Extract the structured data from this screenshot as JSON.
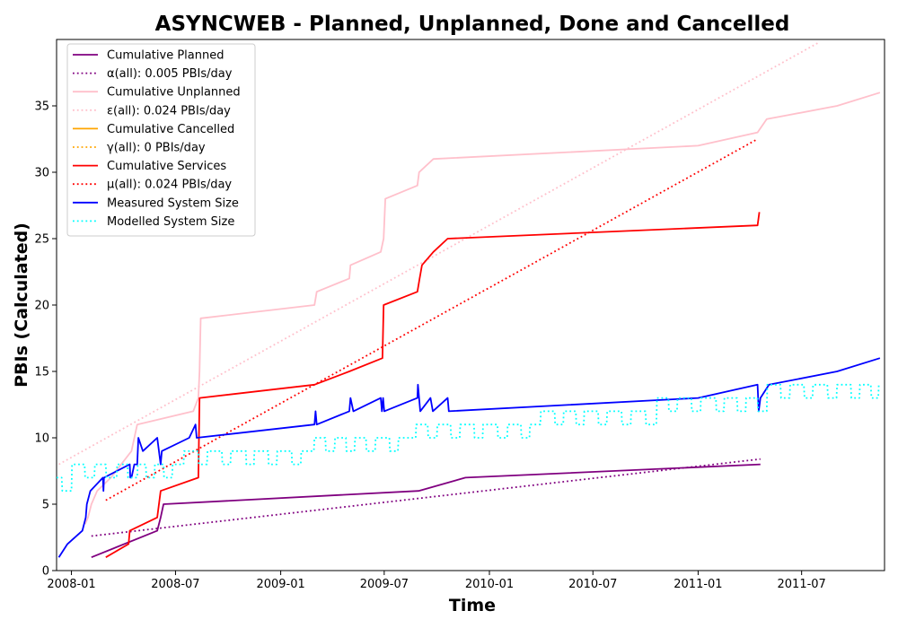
{
  "chart_data": {
    "type": "line",
    "title": "ASYNCWEB - Planned, Unplanned, Done  and Cancelled",
    "xlabel": "Time",
    "ylabel": "PBIs (Calculated)",
    "x_axis_type": "date",
    "xlim": [
      "2007-12-06",
      "2011-11-23"
    ],
    "ylim": [
      0,
      40
    ],
    "x_ticks": [
      "2008-01",
      "2008-07",
      "2009-01",
      "2009-07",
      "2010-01",
      "2010-07",
      "2011-01",
      "2011-07"
    ],
    "y_ticks": [
      0,
      5,
      10,
      15,
      20,
      25,
      30,
      35
    ],
    "grid": false,
    "legend_position": "top-left",
    "series": [
      {
        "name": "Cumulative Planned",
        "color": "#800080",
        "style": "solid",
        "points": [
          [
            "2008-02-05",
            1
          ],
          [
            "2008-05-30",
            3
          ],
          [
            "2008-06-05",
            4
          ],
          [
            "2008-06-10",
            5
          ],
          [
            "2009-08-30",
            6
          ],
          [
            "2009-11-20",
            7
          ],
          [
            "2011-04-20",
            8
          ]
        ]
      },
      {
        "name": "α(all): 0.005 PBIs/day",
        "color": "#800080",
        "style": "dotted",
        "points": [
          [
            "2008-02-05",
            2.6
          ],
          [
            "2011-04-20",
            8.4
          ]
        ]
      },
      {
        "name": "Cumulative Unplanned",
        "color": "#ffc0cb",
        "style": "solid",
        "points": [
          [
            "2008-01-25",
            3.5
          ],
          [
            "2008-01-30",
            4
          ],
          [
            "2008-02-05",
            5
          ],
          [
            "2008-02-15",
            6
          ],
          [
            "2008-03-10",
            7
          ],
          [
            "2008-04-15",
            9
          ],
          [
            "2008-04-25",
            11
          ],
          [
            "2008-08-01",
            12
          ],
          [
            "2008-08-10",
            13
          ],
          [
            "2008-08-12",
            15
          ],
          [
            "2008-08-14",
            19
          ],
          [
            "2009-03-01",
            20
          ],
          [
            "2009-03-05",
            21
          ],
          [
            "2009-05-01",
            22
          ],
          [
            "2009-05-03",
            23
          ],
          [
            "2009-06-25",
            24
          ],
          [
            "2009-06-30",
            25
          ],
          [
            "2009-07-03",
            28
          ],
          [
            "2009-08-28",
            29
          ],
          [
            "2009-08-31",
            30
          ],
          [
            "2009-09-25",
            31
          ],
          [
            "2011-01-01",
            32
          ],
          [
            "2011-04-15",
            33
          ],
          [
            "2011-05-01",
            34
          ],
          [
            "2011-09-01",
            35
          ],
          [
            "2011-11-15",
            36
          ]
        ]
      },
      {
        "name": "ε(all): 0.024 PBIs/day",
        "color": "#ffc0cb",
        "style": "dotted",
        "points": [
          [
            "2007-12-10",
            8
          ],
          [
            "2011-08-01",
            39.8
          ]
        ]
      },
      {
        "name": "Cumulative Cancelled",
        "color": "#ffa500",
        "style": "solid",
        "points": []
      },
      {
        "name": "γ(all): 0 PBIs/day",
        "color": "#ffa500",
        "style": "dotted",
        "points": []
      },
      {
        "name": "Cumulative Services",
        "color": "#ff0000",
        "style": "solid",
        "points": [
          [
            "2008-03-01",
            1
          ],
          [
            "2008-04-10",
            2
          ],
          [
            "2008-04-12",
            3
          ],
          [
            "2008-05-30",
            4
          ],
          [
            "2008-06-05",
            6
          ],
          [
            "2008-08-10",
            7
          ],
          [
            "2008-08-12",
            13
          ],
          [
            "2009-03-01",
            14
          ],
          [
            "2009-05-01",
            15
          ],
          [
            "2009-06-28",
            16
          ],
          [
            "2009-06-30",
            20
          ],
          [
            "2009-08-28",
            21
          ],
          [
            "2009-09-01",
            22
          ],
          [
            "2009-09-05",
            23
          ],
          [
            "2009-09-25",
            24
          ],
          [
            "2009-10-20",
            25
          ],
          [
            "2011-04-15",
            26
          ],
          [
            "2011-04-18",
            27
          ]
        ]
      },
      {
        "name": "μ(all): 0.024 PBIs/day",
        "color": "#ff0000",
        "style": "dotted",
        "points": [
          [
            "2008-03-01",
            5.3
          ],
          [
            "2011-04-15",
            32.5
          ]
        ]
      },
      {
        "name": "Measured System Size",
        "color": "#0000ff",
        "style": "solid",
        "points": [
          [
            "2007-12-10",
            1
          ],
          [
            "2007-12-25",
            2
          ],
          [
            "2008-01-20",
            3
          ],
          [
            "2008-01-26",
            4
          ],
          [
            "2008-01-28",
            5
          ],
          [
            "2008-02-03",
            6
          ],
          [
            "2008-02-25",
            7
          ],
          [
            "2008-02-26",
            6
          ],
          [
            "2008-02-27",
            7
          ],
          [
            "2008-04-12",
            8
          ],
          [
            "2008-04-13",
            7
          ],
          [
            "2008-04-15",
            7
          ],
          [
            "2008-04-20",
            8
          ],
          [
            "2008-04-25",
            8
          ],
          [
            "2008-04-27",
            10
          ],
          [
            "2008-05-05",
            9
          ],
          [
            "2008-05-30",
            10
          ],
          [
            "2008-06-02",
            9
          ],
          [
            "2008-06-05",
            8
          ],
          [
            "2008-06-07",
            9
          ],
          [
            "2008-07-25",
            10
          ],
          [
            "2008-08-05",
            11
          ],
          [
            "2008-08-07",
            10
          ],
          [
            "2009-03-01",
            11
          ],
          [
            "2009-03-03",
            12
          ],
          [
            "2009-03-05",
            11
          ],
          [
            "2009-05-01",
            12
          ],
          [
            "2009-05-03",
            13
          ],
          [
            "2009-05-08",
            12
          ],
          [
            "2009-06-25",
            13
          ],
          [
            "2009-06-27",
            12
          ],
          [
            "2009-06-29",
            13
          ],
          [
            "2009-07-01",
            12
          ],
          [
            "2009-08-28",
            13
          ],
          [
            "2009-08-29",
            14
          ],
          [
            "2009-09-02",
            12
          ],
          [
            "2009-09-20",
            13
          ],
          [
            "2009-09-24",
            12
          ],
          [
            "2009-10-20",
            13
          ],
          [
            "2009-10-22",
            12
          ],
          [
            "2011-01-01",
            13
          ],
          [
            "2011-04-15",
            14
          ],
          [
            "2011-04-17",
            12
          ],
          [
            "2011-04-20",
            13
          ],
          [
            "2011-05-05",
            14
          ],
          [
            "2011-09-01",
            15
          ],
          [
            "2011-11-15",
            16
          ]
        ]
      },
      {
        "name": "Modelled System Size",
        "color": "#00ffff",
        "style": "dotted",
        "points": [
          [
            "2007-12-06",
            7
          ],
          [
            "2007-12-15",
            7
          ],
          [
            "2007-12-16",
            6
          ],
          [
            "2008-01-01",
            6
          ],
          [
            "2008-01-02",
            8
          ],
          [
            "2008-01-24",
            8
          ],
          [
            "2008-01-25",
            7
          ],
          [
            "2008-02-10",
            7
          ],
          [
            "2008-02-11",
            8
          ],
          [
            "2008-03-01",
            8
          ],
          [
            "2008-03-02",
            7
          ],
          [
            "2008-03-20",
            7
          ],
          [
            "2008-03-21",
            8
          ],
          [
            "2008-04-08",
            8
          ],
          [
            "2008-04-09",
            7
          ],
          [
            "2008-04-25",
            7
          ],
          [
            "2008-04-26",
            8
          ],
          [
            "2008-05-10",
            8
          ],
          [
            "2008-05-11",
            7
          ],
          [
            "2008-05-25",
            7
          ],
          [
            "2008-05-26",
            8
          ],
          [
            "2008-06-10",
            8
          ],
          [
            "2008-06-11",
            7
          ],
          [
            "2008-06-25",
            7
          ],
          [
            "2008-06-26",
            8
          ],
          [
            "2008-07-15",
            8
          ],
          [
            "2008-07-16",
            9
          ],
          [
            "2008-08-10",
            9
          ],
          [
            "2008-08-11",
            8
          ],
          [
            "2008-08-25",
            8
          ],
          [
            "2008-08-26",
            9
          ],
          [
            "2008-09-20",
            9
          ],
          [
            "2008-09-21",
            8
          ],
          [
            "2008-10-05",
            8
          ],
          [
            "2008-10-06",
            9
          ],
          [
            "2008-11-01",
            9
          ],
          [
            "2008-11-02",
            8
          ],
          [
            "2008-11-15",
            8
          ],
          [
            "2008-11-16",
            9
          ],
          [
            "2008-12-10",
            9
          ],
          [
            "2008-12-11",
            8
          ],
          [
            "2008-12-25",
            8
          ],
          [
            "2008-12-26",
            9
          ],
          [
            "2009-01-20",
            9
          ],
          [
            "2009-01-21",
            8
          ],
          [
            "2009-02-05",
            8
          ],
          [
            "2009-02-06",
            9
          ],
          [
            "2009-02-28",
            9
          ],
          [
            "2009-03-01",
            10
          ],
          [
            "2009-03-20",
            10
          ],
          [
            "2009-03-21",
            9
          ],
          [
            "2009-04-05",
            9
          ],
          [
            "2009-04-06",
            10
          ],
          [
            "2009-04-25",
            10
          ],
          [
            "2009-04-26",
            9
          ],
          [
            "2009-05-10",
            9
          ],
          [
            "2009-05-11",
            10
          ],
          [
            "2009-05-30",
            10
          ],
          [
            "2009-05-31",
            9
          ],
          [
            "2009-06-15",
            9
          ],
          [
            "2009-06-16",
            10
          ],
          [
            "2009-07-10",
            10
          ],
          [
            "2009-07-11",
            9
          ],
          [
            "2009-07-25",
            9
          ],
          [
            "2009-07-26",
            10
          ],
          [
            "2009-08-25",
            10
          ],
          [
            "2009-08-26",
            11
          ],
          [
            "2009-09-15",
            11
          ],
          [
            "2009-09-16",
            10
          ],
          [
            "2009-10-01",
            10
          ],
          [
            "2009-10-02",
            11
          ],
          [
            "2009-10-25",
            11
          ],
          [
            "2009-10-26",
            10
          ],
          [
            "2009-11-10",
            10
          ],
          [
            "2009-11-11",
            11
          ],
          [
            "2009-12-05",
            11
          ],
          [
            "2009-12-06",
            10
          ],
          [
            "2009-12-20",
            10
          ],
          [
            "2009-12-21",
            11
          ],
          [
            "2010-01-15",
            11
          ],
          [
            "2010-01-16",
            10
          ],
          [
            "2010-02-01",
            10
          ],
          [
            "2010-02-02",
            11
          ],
          [
            "2010-02-25",
            11
          ],
          [
            "2010-02-26",
            10
          ],
          [
            "2010-03-12",
            10
          ],
          [
            "2010-03-13",
            11
          ],
          [
            "2010-03-31",
            11
          ],
          [
            "2010-04-01",
            12
          ],
          [
            "2010-04-25",
            12
          ],
          [
            "2010-04-26",
            11
          ],
          [
            "2010-05-10",
            11
          ],
          [
            "2010-05-11",
            12
          ],
          [
            "2010-06-01",
            12
          ],
          [
            "2010-06-02",
            11
          ],
          [
            "2010-06-15",
            11
          ],
          [
            "2010-06-16",
            12
          ],
          [
            "2010-07-10",
            12
          ],
          [
            "2010-07-11",
            11
          ],
          [
            "2010-07-25",
            11
          ],
          [
            "2010-07-26",
            12
          ],
          [
            "2010-08-20",
            12
          ],
          [
            "2010-08-21",
            11
          ],
          [
            "2010-09-05",
            11
          ],
          [
            "2010-09-06",
            12
          ],
          [
            "2010-10-01",
            12
          ],
          [
            "2010-10-02",
            11
          ],
          [
            "2010-10-20",
            11
          ],
          [
            "2010-10-21",
            13
          ],
          [
            "2010-11-10",
            13
          ],
          [
            "2010-11-11",
            12
          ],
          [
            "2010-11-25",
            12
          ],
          [
            "2010-11-26",
            13
          ],
          [
            "2010-12-20",
            13
          ],
          [
            "2010-12-21",
            12
          ],
          [
            "2011-01-05",
            12
          ],
          [
            "2011-01-06",
            13
          ],
          [
            "2011-02-01",
            13
          ],
          [
            "2011-02-02",
            12
          ],
          [
            "2011-02-15",
            12
          ],
          [
            "2011-02-16",
            13
          ],
          [
            "2011-03-10",
            13
          ],
          [
            "2011-03-11",
            12
          ],
          [
            "2011-03-25",
            12
          ],
          [
            "2011-03-26",
            13
          ],
          [
            "2011-04-15",
            13
          ],
          [
            "2011-04-16",
            12
          ],
          [
            "2011-05-01",
            12
          ],
          [
            "2011-05-02",
            14
          ],
          [
            "2011-05-25",
            14
          ],
          [
            "2011-05-26",
            13
          ],
          [
            "2011-06-10",
            13
          ],
          [
            "2011-06-11",
            14
          ],
          [
            "2011-07-05",
            14
          ],
          [
            "2011-07-06",
            13
          ],
          [
            "2011-07-20",
            13
          ],
          [
            "2011-07-21",
            14
          ],
          [
            "2011-08-15",
            14
          ],
          [
            "2011-08-16",
            13
          ],
          [
            "2011-08-31",
            13
          ],
          [
            "2011-09-01",
            14
          ],
          [
            "2011-09-25",
            14
          ],
          [
            "2011-09-26",
            13
          ],
          [
            "2011-10-10",
            13
          ],
          [
            "2011-10-11",
            14
          ],
          [
            "2011-10-30",
            14
          ],
          [
            "2011-10-31",
            13
          ],
          [
            "2011-11-12",
            13
          ],
          [
            "2011-11-13",
            14
          ]
        ]
      }
    ]
  }
}
